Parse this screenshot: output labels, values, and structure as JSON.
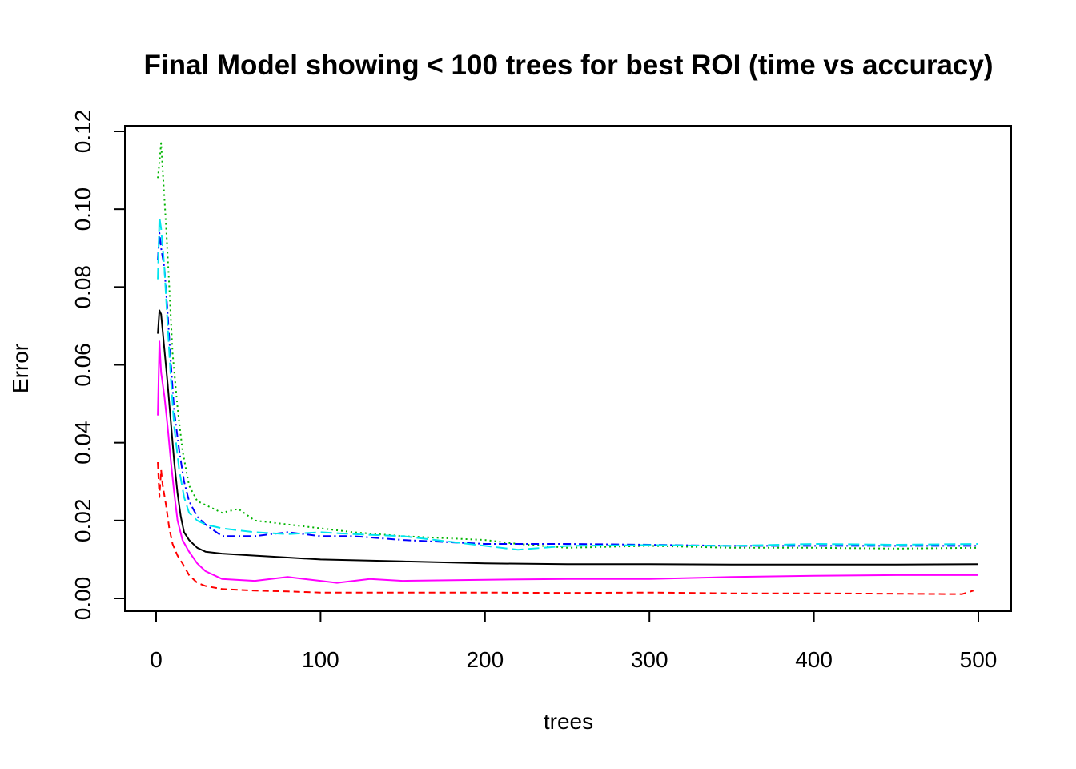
{
  "chart_data": {
    "type": "line",
    "title": "Final Model showing < 100 trees for best ROI (time vs accuracy)",
    "xlabel": "trees",
    "ylabel": "Error",
    "xlim": [
      0,
      500
    ],
    "ylim": [
      0,
      0.12
    ],
    "x_ticks": [
      "0",
      "100",
      "200",
      "300",
      "400",
      "500"
    ],
    "y_ticks": [
      "0.00",
      "0.02",
      "0.04",
      "0.06",
      "0.08",
      "0.10",
      "0.12"
    ],
    "grid": false,
    "legend": "none",
    "series": [
      {
        "color": "#000000",
        "dash": "solid",
        "points": [
          [
            1,
            0.068
          ],
          [
            2,
            0.074
          ],
          [
            3,
            0.073
          ],
          [
            5,
            0.064
          ],
          [
            7,
            0.055
          ],
          [
            9,
            0.045
          ],
          [
            11,
            0.035
          ],
          [
            13,
            0.027
          ],
          [
            15,
            0.021
          ],
          [
            17,
            0.017
          ],
          [
            20,
            0.015
          ],
          [
            25,
            0.013
          ],
          [
            30,
            0.012
          ],
          [
            40,
            0.0115
          ],
          [
            60,
            0.011
          ],
          [
            80,
            0.0105
          ],
          [
            100,
            0.01
          ],
          [
            150,
            0.0095
          ],
          [
            200,
            0.009
          ],
          [
            250,
            0.0088
          ],
          [
            300,
            0.0088
          ],
          [
            350,
            0.0087
          ],
          [
            400,
            0.0087
          ],
          [
            450,
            0.0087
          ],
          [
            500,
            0.0088
          ]
        ]
      },
      {
        "color": "#ff0000",
        "dash": "8,5",
        "points": [
          [
            1,
            0.035
          ],
          [
            2,
            0.026
          ],
          [
            3,
            0.033
          ],
          [
            4,
            0.029
          ],
          [
            6,
            0.024
          ],
          [
            8,
            0.018
          ],
          [
            10,
            0.014
          ],
          [
            13,
            0.011
          ],
          [
            16,
            0.009
          ],
          [
            20,
            0.006
          ],
          [
            25,
            0.004
          ],
          [
            30,
            0.0032
          ],
          [
            40,
            0.0024
          ],
          [
            60,
            0.002
          ],
          [
            80,
            0.0018
          ],
          [
            100,
            0.0015
          ],
          [
            150,
            0.0015
          ],
          [
            200,
            0.0015
          ],
          [
            250,
            0.0014
          ],
          [
            300,
            0.0015
          ],
          [
            350,
            0.0013
          ],
          [
            400,
            0.0013
          ],
          [
            450,
            0.0012
          ],
          [
            490,
            0.0011
          ],
          [
            497,
            0.002
          ]
        ]
      },
      {
        "color": "#00b400",
        "dash": "2,4",
        "points": [
          [
            1,
            0.108
          ],
          [
            2,
            0.112
          ],
          [
            3,
            0.117
          ],
          [
            4,
            0.11
          ],
          [
            6,
            0.096
          ],
          [
            8,
            0.08
          ],
          [
            10,
            0.063
          ],
          [
            13,
            0.049
          ],
          [
            16,
            0.038
          ],
          [
            20,
            0.029
          ],
          [
            25,
            0.025
          ],
          [
            30,
            0.024
          ],
          [
            40,
            0.022
          ],
          [
            50,
            0.023
          ],
          [
            60,
            0.02
          ],
          [
            80,
            0.019
          ],
          [
            100,
            0.018
          ],
          [
            120,
            0.017
          ],
          [
            150,
            0.016
          ],
          [
            200,
            0.015
          ],
          [
            220,
            0.014
          ],
          [
            250,
            0.013
          ],
          [
            300,
            0.0135
          ],
          [
            350,
            0.013
          ],
          [
            400,
            0.013
          ],
          [
            450,
            0.0128
          ],
          [
            500,
            0.013
          ]
        ]
      },
      {
        "color": "#0000ff",
        "dash": "10,4,2,4",
        "points": [
          [
            1,
            0.087
          ],
          [
            2,
            0.094
          ],
          [
            3,
            0.09
          ],
          [
            5,
            0.085
          ],
          [
            7,
            0.073
          ],
          [
            9,
            0.06
          ],
          [
            11,
            0.048
          ],
          [
            14,
            0.038
          ],
          [
            17,
            0.03
          ],
          [
            20,
            0.025
          ],
          [
            25,
            0.021
          ],
          [
            30,
            0.019
          ],
          [
            40,
            0.016
          ],
          [
            60,
            0.016
          ],
          [
            80,
            0.017
          ],
          [
            100,
            0.016
          ],
          [
            120,
            0.016
          ],
          [
            150,
            0.015
          ],
          [
            200,
            0.014
          ],
          [
            250,
            0.014
          ],
          [
            300,
            0.0138
          ],
          [
            350,
            0.0135
          ],
          [
            400,
            0.0135
          ],
          [
            450,
            0.0135
          ],
          [
            500,
            0.0135
          ]
        ]
      },
      {
        "color": "#00e5ee",
        "dash": "14,6",
        "points": [
          [
            1,
            0.082
          ],
          [
            2,
            0.098
          ],
          [
            3,
            0.095
          ],
          [
            5,
            0.085
          ],
          [
            7,
            0.07
          ],
          [
            9,
            0.056
          ],
          [
            11,
            0.044
          ],
          [
            14,
            0.033
          ],
          [
            17,
            0.026
          ],
          [
            20,
            0.022
          ],
          [
            25,
            0.02
          ],
          [
            30,
            0.019
          ],
          [
            40,
            0.018
          ],
          [
            60,
            0.017
          ],
          [
            80,
            0.0165
          ],
          [
            100,
            0.017
          ],
          [
            120,
            0.0165
          ],
          [
            150,
            0.016
          ],
          [
            200,
            0.0135
          ],
          [
            220,
            0.0125
          ],
          [
            250,
            0.0135
          ],
          [
            300,
            0.0137
          ],
          [
            350,
            0.0135
          ],
          [
            400,
            0.014
          ],
          [
            450,
            0.0138
          ],
          [
            500,
            0.014
          ]
        ]
      },
      {
        "color": "#ff00ff",
        "dash": "solid",
        "points": [
          [
            1,
            0.047
          ],
          [
            2,
            0.066
          ],
          [
            3,
            0.058
          ],
          [
            5,
            0.052
          ],
          [
            7,
            0.044
          ],
          [
            9,
            0.035
          ],
          [
            11,
            0.027
          ],
          [
            13,
            0.02
          ],
          [
            16,
            0.015
          ],
          [
            20,
            0.012
          ],
          [
            25,
            0.009
          ],
          [
            30,
            0.007
          ],
          [
            40,
            0.005
          ],
          [
            60,
            0.0045
          ],
          [
            80,
            0.0055
          ],
          [
            100,
            0.0045
          ],
          [
            110,
            0.004
          ],
          [
            130,
            0.005
          ],
          [
            150,
            0.0045
          ],
          [
            200,
            0.0048
          ],
          [
            250,
            0.005
          ],
          [
            300,
            0.005
          ],
          [
            350,
            0.0055
          ],
          [
            400,
            0.0058
          ],
          [
            450,
            0.006
          ],
          [
            500,
            0.006
          ]
        ]
      }
    ]
  }
}
